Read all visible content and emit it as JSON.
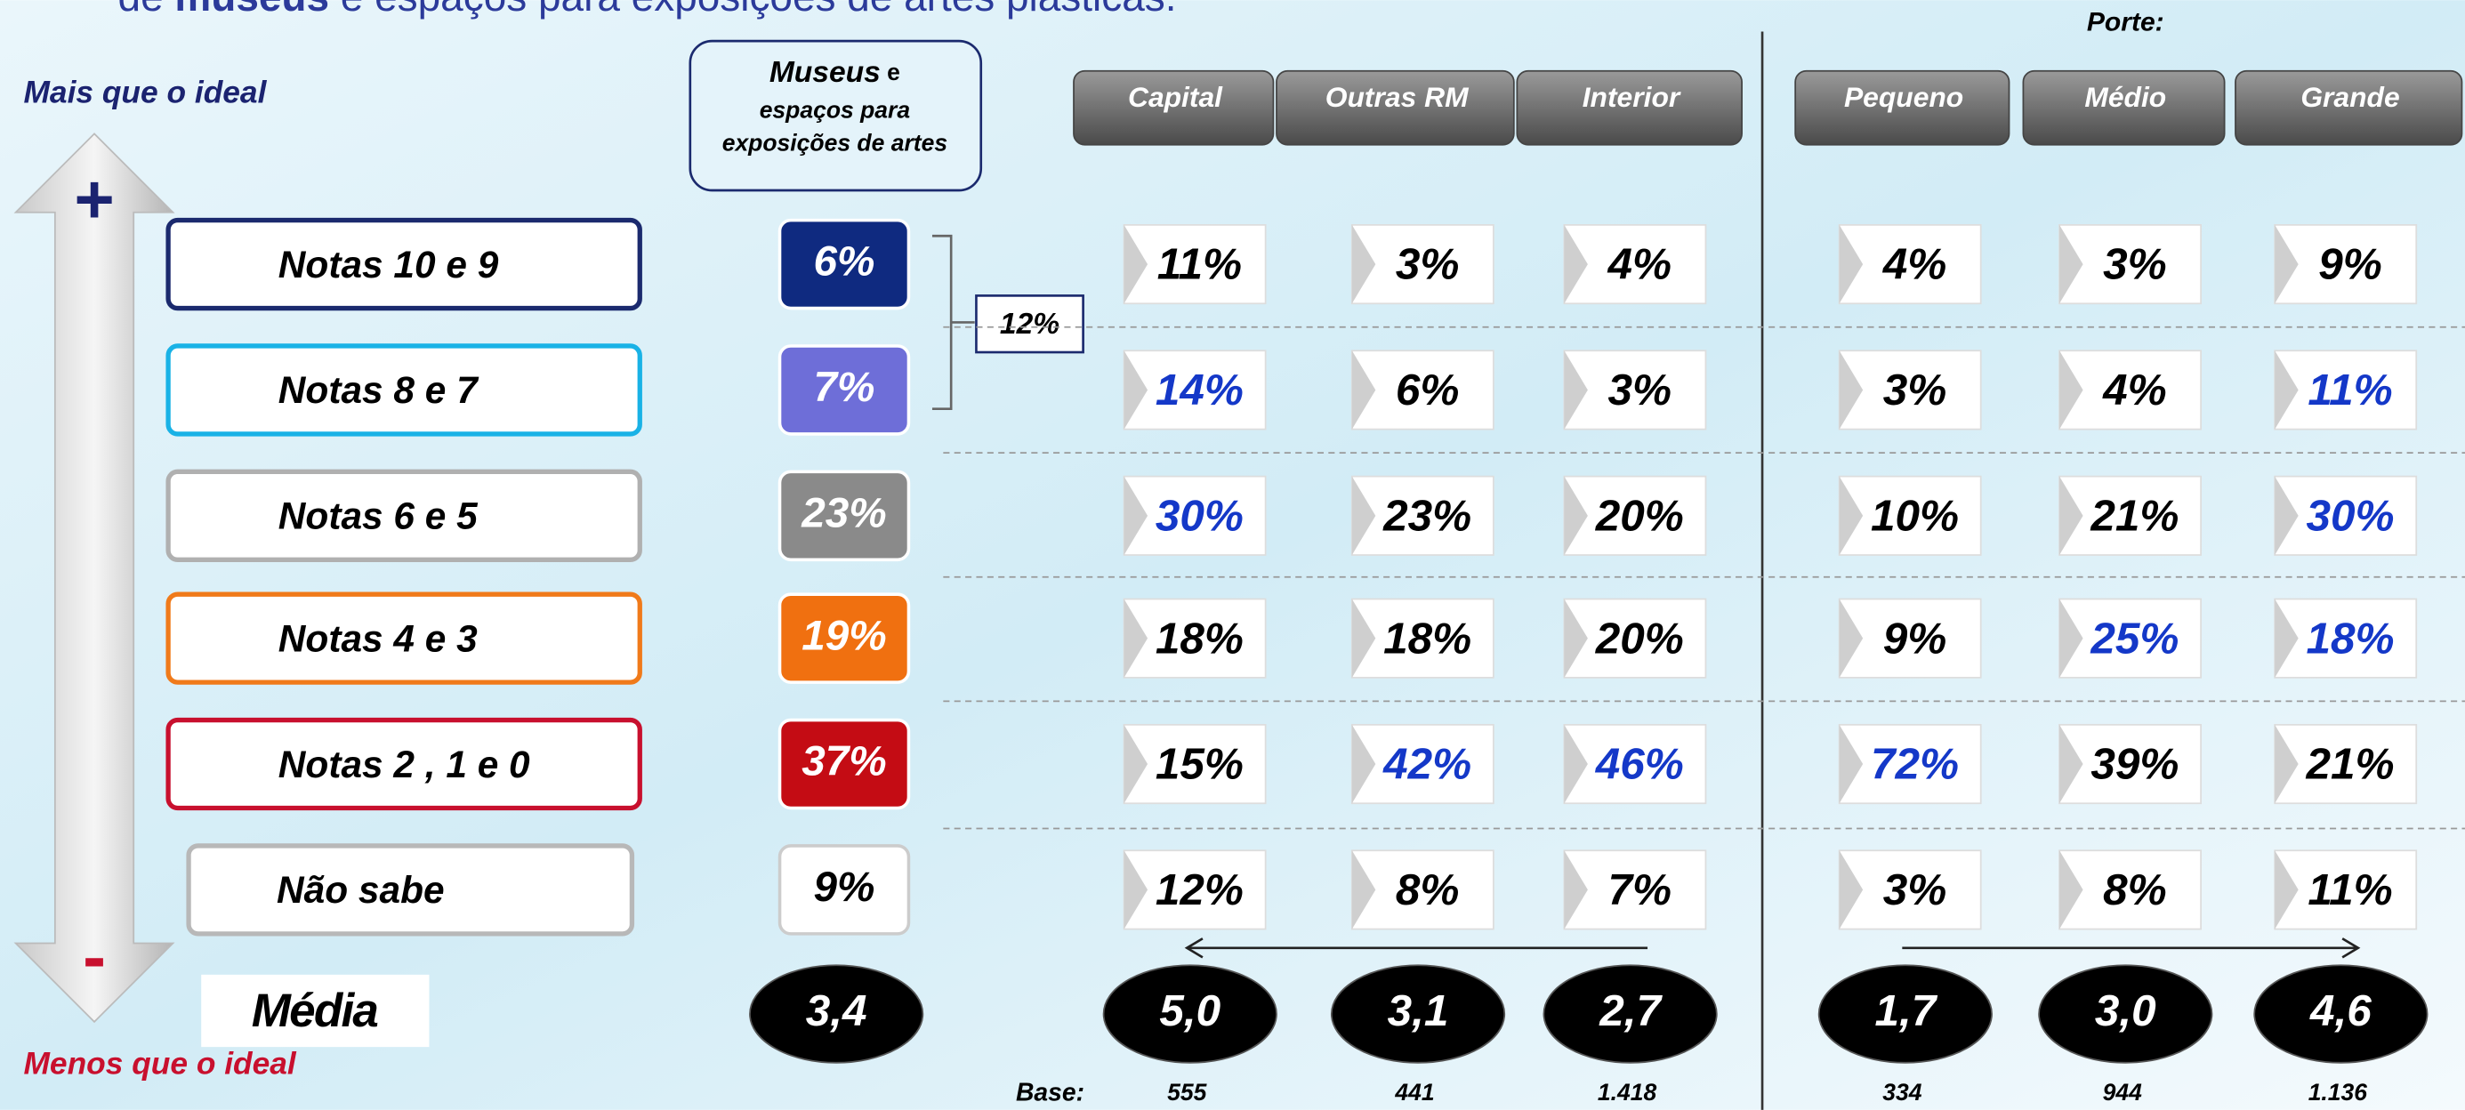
{
  "header": {
    "subtitle_pre": "de ",
    "subtitle_bold": "museus",
    "subtitle_post": " e espaços para exposições de artes plásticas."
  },
  "scale": {
    "top": "Mais que o ideal",
    "bottom": "Menos que o ideal",
    "plus": "+",
    "minus": "-"
  },
  "museus_header": {
    "bold": "Museus",
    "rest": " e",
    "line2": "espaços para",
    "line3": "exposições de artes"
  },
  "bracket_total": "12%",
  "porte_label": "Porte:",
  "columns": [
    "Capital",
    "Outras RM",
    "Interior",
    "Pequeno",
    "Médio",
    "Grande"
  ],
  "highlight_color": "#1438c8",
  "rows": [
    {
      "label": "Notas 10 e 9",
      "total": "6%",
      "border": "#1b2a6e",
      "fill": "#0f2a80",
      "values": [
        "11%",
        "3%",
        "4%",
        "4%",
        "3%",
        "9%"
      ],
      "highlight": [
        false,
        false,
        false,
        false,
        false,
        false
      ]
    },
    {
      "label": "Notas 8 e 7",
      "total": "7%",
      "border": "#19b2e6",
      "fill": "#6e6ed8",
      "values": [
        "14%",
        "6%",
        "3%",
        "3%",
        "4%",
        "11%"
      ],
      "highlight": [
        true,
        false,
        false,
        false,
        false,
        true
      ]
    },
    {
      "label": "Notas 6 e 5",
      "total": "23%",
      "border": "#b0b0b0",
      "fill": "#8a8a8a",
      "values": [
        "30%",
        "23%",
        "20%",
        "10%",
        "21%",
        "30%"
      ],
      "highlight": [
        true,
        false,
        false,
        false,
        false,
        true
      ]
    },
    {
      "label": "Notas 4 e 3",
      "total": "19%",
      "border": "#f07a1a",
      "fill": "#f07010",
      "values": [
        "18%",
        "18%",
        "20%",
        "9%",
        "25%",
        "18%"
      ],
      "highlight": [
        false,
        false,
        false,
        false,
        true,
        true
      ]
    },
    {
      "label": "Notas 2 , 1 e 0",
      "total": "37%",
      "border": "#c8102e",
      "fill": "#c40c14",
      "values": [
        "15%",
        "42%",
        "46%",
        "72%",
        "39%",
        "21%"
      ],
      "highlight": [
        false,
        true,
        true,
        true,
        false,
        false
      ]
    },
    {
      "label": "Não sabe",
      "total": "9%",
      "border": "#b8b8b8",
      "fill": "#ffffff",
      "values": [
        "12%",
        "8%",
        "7%",
        "3%",
        "8%",
        "11%"
      ],
      "highlight": [
        false,
        false,
        false,
        false,
        false,
        false
      ]
    }
  ],
  "media": {
    "label": "Média",
    "total": "3,4",
    "values": [
      "5,0",
      "3,1",
      "2,7",
      "1,7",
      "3,0",
      "4,6"
    ]
  },
  "base": {
    "label": "Base:",
    "values": [
      "555",
      "441",
      "1.418",
      "334",
      "944",
      "1.136"
    ]
  }
}
